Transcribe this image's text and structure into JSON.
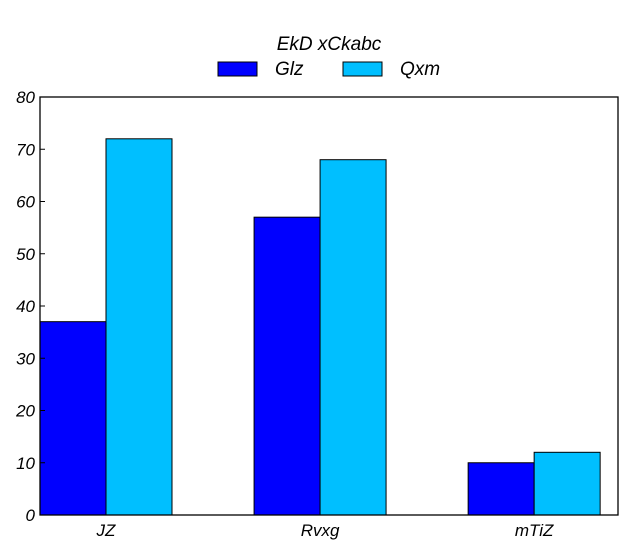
{
  "chart_data": {
    "type": "bar",
    "legend_title": "EkD xCkabc",
    "legend_position": "top-center",
    "categories": [
      "JZ",
      "Rvxg",
      "mTiZ"
    ],
    "series": [
      {
        "name": "Glz",
        "values": [
          37,
          57,
          10
        ],
        "color": "#0000ff"
      },
      {
        "name": "Qxm",
        "values": [
          72,
          68,
          12
        ],
        "color": "#00bfff"
      }
    ],
    "ylim": [
      0,
      80
    ],
    "yticks": [
      0,
      10,
      20,
      30,
      40,
      50,
      60,
      70,
      80
    ],
    "grid": false
  }
}
